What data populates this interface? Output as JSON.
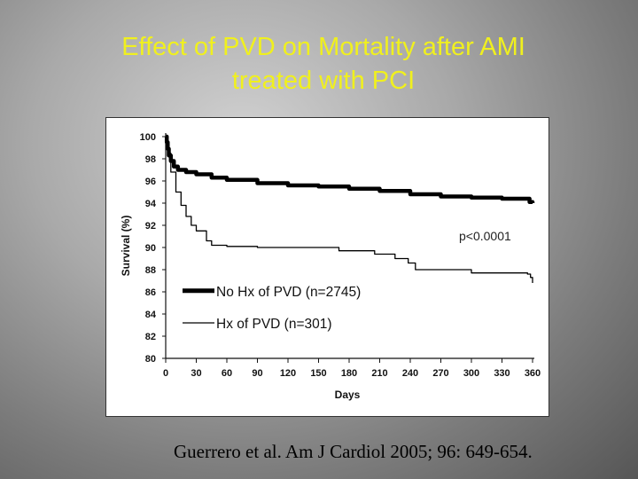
{
  "slide": {
    "title_line1": "Effect of PVD on Mortality after AMI",
    "title_line2": "treated with PCI",
    "citation": "Guerrero et al. Am J Cardiol 2005; 96: 649-654.",
    "title_color": "#f0f01e"
  },
  "chart_data": {
    "type": "line",
    "title": "",
    "xlabel": "Days",
    "ylabel": "Survival (%)",
    "xlim": [
      0,
      360
    ],
    "ylim": [
      80,
      100
    ],
    "xticks": [
      0,
      30,
      60,
      90,
      120,
      150,
      180,
      210,
      240,
      270,
      300,
      330,
      360
    ],
    "yticks": [
      80,
      82,
      84,
      86,
      88,
      90,
      92,
      94,
      96,
      98,
      100
    ],
    "grid": false,
    "annotation": "p<0.0001",
    "legend_position": "bottom-left",
    "series": [
      {
        "name": "No Hx of PVD (n=2745)",
        "color": "#000000",
        "style": "thick",
        "x": [
          0,
          1,
          2,
          3,
          5,
          8,
          12,
          20,
          30,
          45,
          60,
          90,
          120,
          150,
          180,
          210,
          240,
          270,
          300,
          330,
          355,
          357,
          360
        ],
        "y": [
          100,
          99.5,
          98.9,
          98.3,
          97.8,
          97.3,
          97.0,
          96.8,
          96.6,
          96.3,
          96.1,
          95.8,
          95.6,
          95.5,
          95.3,
          95.1,
          94.8,
          94.6,
          94.5,
          94.4,
          94.4,
          94.1,
          94.0
        ]
      },
      {
        "name": "Hx of PVD (n=301)",
        "color": "#000000",
        "style": "thin",
        "x": [
          0,
          2,
          5,
          10,
          15,
          20,
          25,
          30,
          40,
          45,
          60,
          90,
          135,
          170,
          205,
          225,
          238,
          245,
          265,
          300,
          320,
          350,
          355,
          358,
          360
        ],
        "y": [
          100,
          98.5,
          96.8,
          95.0,
          93.8,
          92.8,
          92.0,
          91.5,
          90.6,
          90.2,
          90.1,
          90.0,
          90.0,
          89.7,
          89.4,
          89.0,
          88.6,
          88.0,
          88.0,
          87.7,
          87.7,
          87.7,
          87.6,
          87.3,
          86.8
        ]
      }
    ]
  }
}
